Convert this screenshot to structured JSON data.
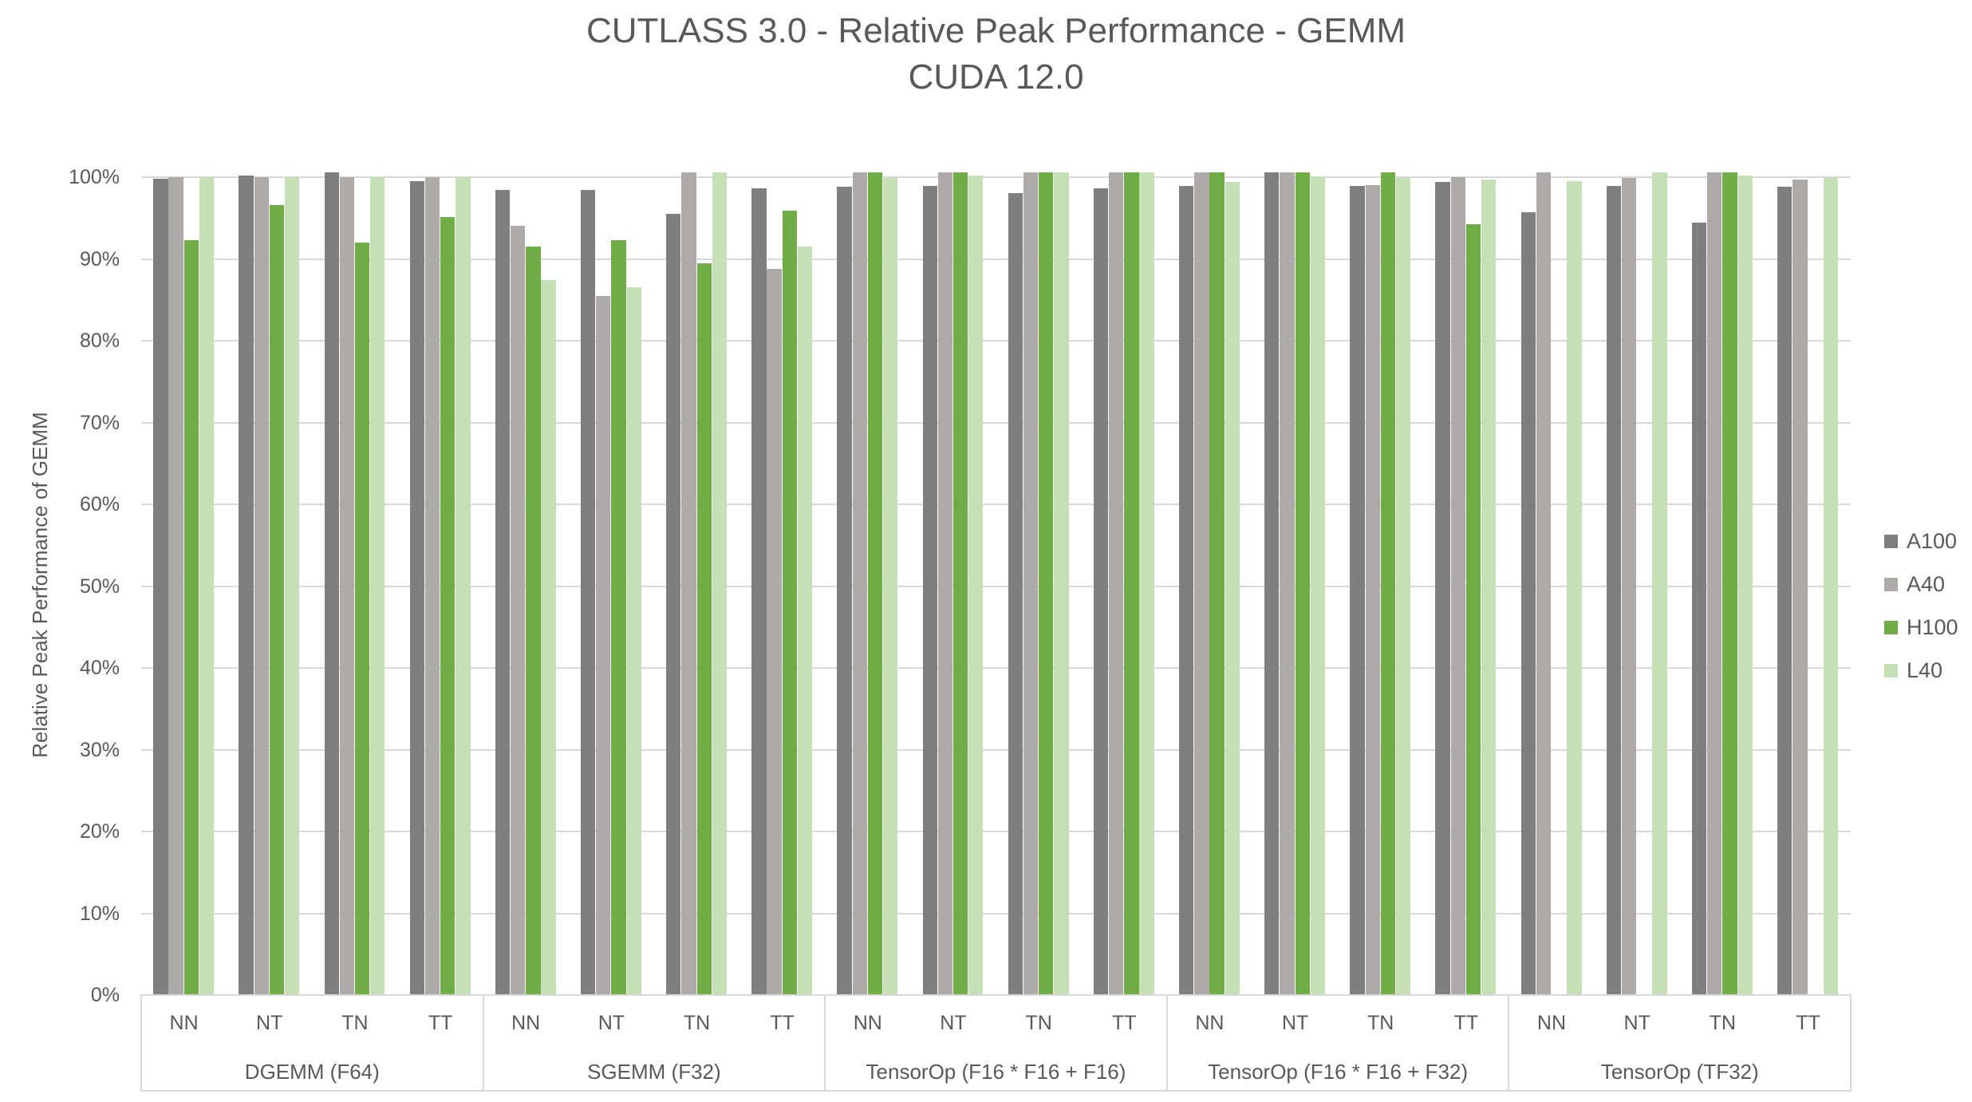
{
  "chart_data": {
    "type": "bar",
    "title": "CUTLASS 3.0 - Relative Peak Performance - GEMM",
    "subtitle": "CUDA 12.0",
    "ylabel": "Relative Peak Performance of GEMM",
    "ylim": [
      0,
      100
    ],
    "unit": "%",
    "grid": true,
    "legend_position": "right",
    "y_ticks": [
      "0%",
      "10%",
      "20%",
      "30%",
      "40%",
      "50%",
      "60%",
      "70%",
      "80%",
      "90%",
      "100%"
    ],
    "groups": [
      "DGEMM (F64)",
      "SGEMM (F32)",
      "TensorOp (F16 * F16 + F16)",
      "TensorOp (F16 * F16 + F32)",
      "TensorOp (TF32)"
    ],
    "categories": [
      "NN",
      "NT",
      "TN",
      "TT"
    ],
    "series": [
      {
        "name": "A100",
        "color": "#7F7F7F",
        "values": [
          [
            99.8,
            100.2,
            100.6,
            99.5
          ],
          [
            98.4,
            98.4,
            95.5,
            98.6
          ],
          [
            98.8,
            98.9,
            98.1,
            98.6
          ],
          [
            98.9,
            100.6,
            98.9,
            99.4
          ],
          [
            95.7,
            98.9,
            94.4,
            98.8
          ]
        ]
      },
      {
        "name": "A40",
        "color": "#AEAAAA",
        "values": [
          [
            100.0,
            100.0,
            100.0,
            100.0
          ],
          [
            94.1,
            85.5,
            100.6,
            88.8
          ],
          [
            100.6,
            100.6,
            100.6,
            100.6
          ],
          [
            100.6,
            100.6,
            99.0,
            100.0
          ],
          [
            100.6,
            99.9,
            100.6,
            99.7
          ]
        ]
      },
      {
        "name": "H100",
        "color": "#70AD47",
        "values": [
          [
            92.3,
            96.6,
            92.0,
            95.1
          ],
          [
            91.5,
            92.3,
            89.5,
            95.9
          ],
          [
            100.6,
            100.6,
            100.6,
            100.6
          ],
          [
            100.6,
            100.6,
            100.6,
            94.2
          ],
          [
            null,
            null,
            100.6,
            null
          ]
        ]
      },
      {
        "name": "L40",
        "color": "#C5E0B4",
        "values": [
          [
            100.0,
            100.0,
            100.0,
            100.0
          ],
          [
            87.4,
            86.5,
            100.6,
            91.5
          ],
          [
            99.9,
            100.2,
            100.6,
            100.6
          ],
          [
            99.4,
            100.1,
            99.9,
            99.7
          ],
          [
            99.5,
            100.6,
            100.2,
            99.9
          ]
        ]
      }
    ],
    "colors": {
      "gridline": "#D9D9D9",
      "axis_border": "#D9D9D9",
      "text": "#595959",
      "background": "#FFFFFF"
    }
  }
}
